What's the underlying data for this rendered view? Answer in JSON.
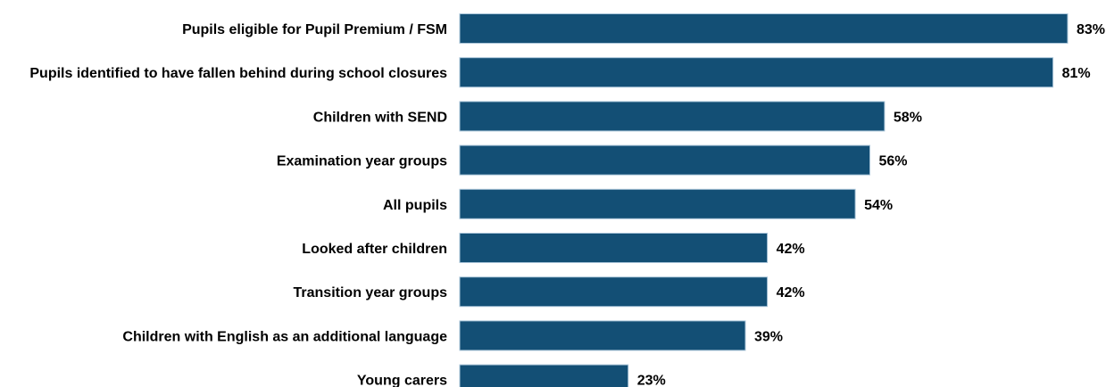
{
  "chart_data": {
    "type": "bar",
    "orientation": "horizontal",
    "categories": [
      "Pupils eligible for Pupil Premium / FSM",
      "Pupils identified to have fallen behind during school closures",
      "Children with SEND",
      "Examination year groups",
      "All pupils",
      "Looked after children",
      "Transition year groups",
      "Children with English as an additional language",
      "Young carers"
    ],
    "values": [
      83,
      81,
      58,
      56,
      54,
      42,
      42,
      39,
      23
    ],
    "value_labels": [
      "83%",
      "81%",
      "58%",
      "56%",
      "54%",
      "42%",
      "42%",
      "39%",
      "23%"
    ],
    "value_unit": "%",
    "xlim": [
      0,
      83
    ],
    "grid": false,
    "legend": "none",
    "bar_color": "#134f75"
  }
}
